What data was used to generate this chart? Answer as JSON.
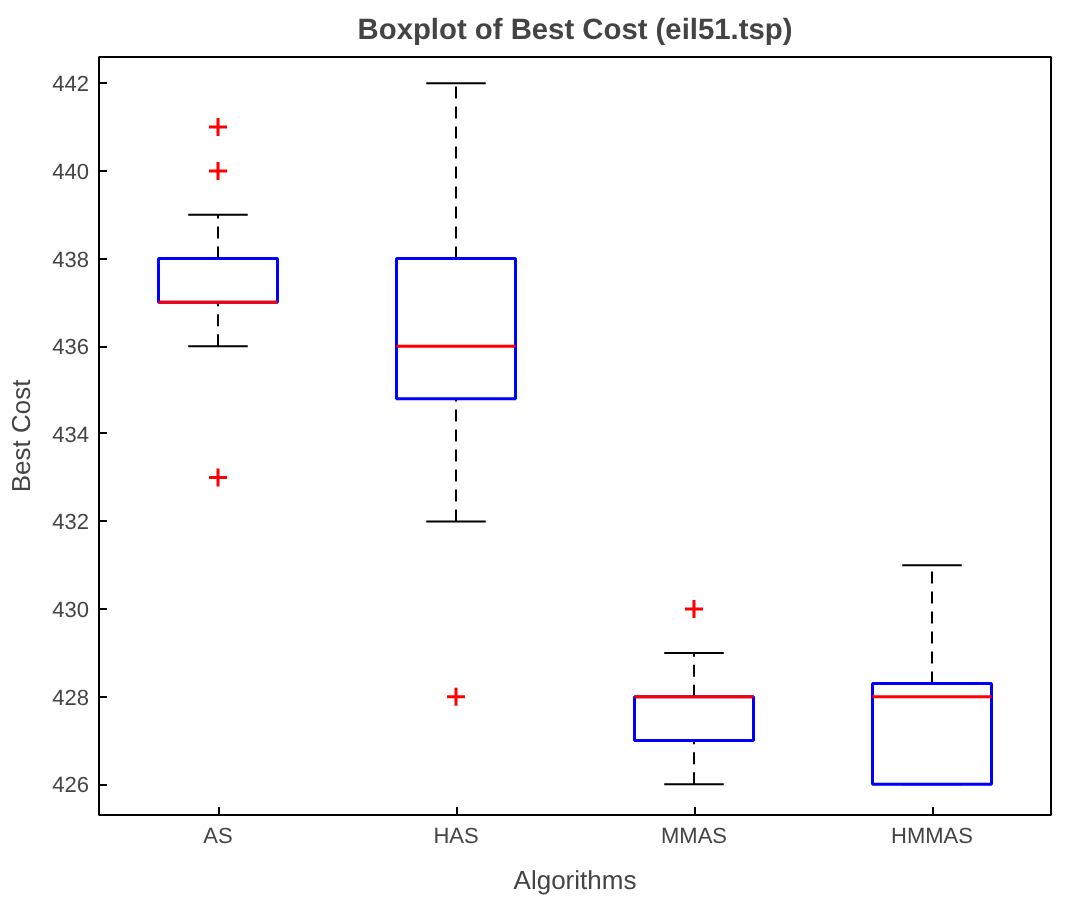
{
  "chart_data": {
    "type": "box",
    "title": "Boxplot of Best Cost (eil51.tsp)",
    "xlabel": "Algorithms",
    "ylabel": "Best Cost",
    "categories": [
      "AS",
      "HAS",
      "MMAS",
      "HMMAS"
    ],
    "series": [
      {
        "color": "#0000ff",
        "boxes": [
          {
            "low": 436,
            "q1": 437,
            "median": 437,
            "q3": 438,
            "high": 439,
            "outliers": [
              433,
              440,
              441
            ]
          },
          {
            "low": 432,
            "q1": 434.8,
            "median": 436,
            "q3": 438,
            "high": 442,
            "outliers": [
              428
            ]
          },
          {
            "low": 426,
            "q1": 427,
            "median": 428,
            "q3": 428,
            "high": 429,
            "outliers": [
              430
            ]
          },
          {
            "low": 426,
            "q1": 426,
            "median": 428,
            "q3": 428.3,
            "high": 431
          }
        ]
      }
    ],
    "ylim": [
      425.3,
      442.6
    ],
    "yticks": [
      426,
      428,
      430,
      432,
      434,
      436,
      438,
      440,
      442
    ],
    "grid": false
  }
}
